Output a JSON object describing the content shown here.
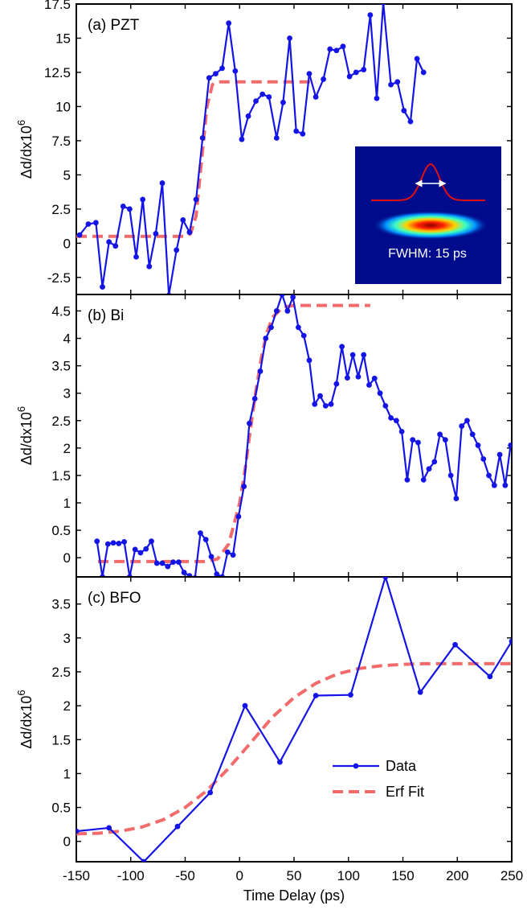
{
  "colors": {
    "data": "#1414e6",
    "fit": "#f26b6b",
    "axis": "#000000",
    "inset_bg": "#000c8c",
    "inset_curve": "#e01010",
    "inset_arrow": "#ffffff"
  },
  "chart_data": {
    "type": "line",
    "x_axis": {
      "label": "Time Delay (ps)",
      "range": [
        -150,
        250
      ],
      "ticks": [
        -150,
        -100,
        -50,
        0,
        50,
        100,
        150,
        200,
        250
      ],
      "tick_labels": [
        "-150",
        "-100",
        "-50",
        "0",
        "50",
        "100",
        "150",
        "200",
        "250"
      ]
    },
    "legend": {
      "placement": "lower-right of panel (c)",
      "entries": [
        {
          "label": "Data",
          "series": "data"
        },
        {
          "label": "Erf Fit",
          "series": "fit"
        }
      ]
    },
    "panels": [
      {
        "id": "a",
        "label": "(a) PZT",
        "ylabel": "Δd/dx10",
        "ylabel_sup": "6",
        "ylim": [
          -3.75,
          17.5
        ],
        "yticks": [
          -2.5,
          0,
          2.5,
          5,
          7.5,
          10,
          12.5,
          15,
          17.5
        ],
        "ytick_labels": [
          "-2.5",
          "0",
          "2.5",
          "5",
          "7.5",
          "10",
          "12.5",
          "15",
          "17.5"
        ],
        "inset": {
          "text": "FWHM: 15 ps"
        },
        "data": [
          [
            -147,
            0.6
          ],
          [
            -139,
            1.4
          ],
          [
            -132,
            1.5
          ],
          [
            -126,
            -3.2
          ],
          [
            -120,
            0.1
          ],
          [
            -114,
            -0.2
          ],
          [
            -107,
            2.7
          ],
          [
            -101,
            2.5
          ],
          [
            -95,
            -1.0
          ],
          [
            -89,
            3.2
          ],
          [
            -83,
            -1.7
          ],
          [
            -77,
            0.7
          ],
          [
            -71,
            4.4
          ],
          [
            -65,
            -3.8
          ],
          [
            -58,
            -0.5
          ],
          [
            -52,
            1.7
          ],
          [
            -46,
            0.8
          ],
          [
            -40,
            3.2
          ],
          [
            -34,
            7.7
          ],
          [
            -28,
            12.1
          ],
          [
            -22,
            12.4
          ],
          [
            -16,
            12.8
          ],
          [
            -10,
            16.1
          ],
          [
            -4,
            12.6
          ],
          [
            2,
            7.6
          ],
          [
            8,
            9.3
          ],
          [
            15,
            10.4
          ],
          [
            21,
            10.9
          ],
          [
            27,
            10.7
          ],
          [
            34,
            7.7
          ],
          [
            40,
            10.3
          ],
          [
            46,
            15.0
          ],
          [
            52,
            8.2
          ],
          [
            58,
            8.0
          ],
          [
            64,
            12.4
          ],
          [
            70,
            10.7
          ],
          [
            77,
            12.0
          ],
          [
            83,
            14.2
          ],
          [
            89,
            14.1
          ],
          [
            95,
            14.4
          ],
          [
            101,
            12.2
          ],
          [
            107,
            12.5
          ],
          [
            114,
            12.7
          ],
          [
            120,
            16.7
          ],
          [
            126,
            10.6
          ],
          [
            132,
            17.6
          ],
          [
            139,
            11.6
          ],
          [
            145,
            11.8
          ],
          [
            151,
            9.7
          ],
          [
            157,
            8.9
          ],
          [
            163,
            13.5
          ],
          [
            169,
            12.5
          ]
        ],
        "fit": [
          [
            -150,
            0.5
          ],
          [
            -70,
            0.5
          ],
          [
            -50,
            0.5
          ],
          [
            -45,
            0.7
          ],
          [
            -40,
            2.0
          ],
          [
            -35,
            6.0
          ],
          [
            -30,
            10.0
          ],
          [
            -25,
            11.6
          ],
          [
            -20,
            11.8
          ],
          [
            -10,
            11.8
          ],
          [
            -5,
            11.8
          ],
          [
            70,
            11.8
          ]
        ]
      },
      {
        "id": "b",
        "label": "(b) Bi",
        "ylabel": "Δd/dx10",
        "ylabel_sup": "6",
        "ylim": [
          -0.35,
          4.8
        ],
        "yticks": [
          0,
          0.5,
          1,
          1.5,
          2,
          2.5,
          3,
          3.5,
          4,
          4.5
        ],
        "ytick_labels": [
          "0",
          "0.5",
          "1",
          "1.5",
          "2",
          "2.5",
          "3",
          "3.5",
          "4",
          "4.5"
        ],
        "data": [
          [
            -131,
            0.3
          ],
          [
            -126,
            -0.35
          ],
          [
            -121,
            0.25
          ],
          [
            -116,
            0.27
          ],
          [
            -111,
            0.26
          ],
          [
            -106,
            0.29
          ],
          [
            -101,
            -0.35
          ],
          [
            -96,
            0.15
          ],
          [
            -91,
            0.09
          ],
          [
            -86,
            0.16
          ],
          [
            -81,
            0.3
          ],
          [
            -76,
            -0.1
          ],
          [
            -71,
            -0.1
          ],
          [
            -66,
            -0.16
          ],
          [
            -61,
            -0.08
          ],
          [
            -56,
            -0.08
          ],
          [
            -51,
            -0.27
          ],
          [
            -46,
            -0.33
          ],
          [
            -41,
            -0.37
          ],
          [
            -36,
            0.45
          ],
          [
            -31,
            0.33
          ],
          [
            -26,
            0.02
          ],
          [
            -21,
            -0.3
          ],
          [
            -16,
            -0.35
          ],
          [
            -11,
            0.1
          ],
          [
            -6,
            0.05
          ],
          [
            -1,
            0.75
          ],
          [
            4,
            1.3
          ],
          [
            9,
            2.45
          ],
          [
            14,
            2.9
          ],
          [
            19,
            3.4
          ],
          [
            24,
            4.0
          ],
          [
            29,
            4.2
          ],
          [
            34,
            4.5
          ],
          [
            39,
            4.8
          ],
          [
            44,
            4.5
          ],
          [
            49,
            4.75
          ],
          [
            54,
            4.2
          ],
          [
            59,
            4.05
          ],
          [
            64,
            3.6
          ],
          [
            69,
            2.8
          ],
          [
            74,
            2.95
          ],
          [
            79,
            2.77
          ],
          [
            84,
            2.8
          ],
          [
            89,
            3.17
          ],
          [
            94,
            3.85
          ],
          [
            99,
            3.28
          ],
          [
            104,
            3.7
          ],
          [
            109,
            3.3
          ],
          [
            114,
            3.7
          ],
          [
            119,
            3.15
          ],
          [
            124,
            3.27
          ],
          [
            129,
            3.0
          ],
          [
            134,
            2.77
          ],
          [
            139,
            2.55
          ],
          [
            144,
            2.5
          ],
          [
            149,
            2.3
          ],
          [
            154,
            1.42
          ],
          [
            159,
            2.15
          ],
          [
            164,
            2.1
          ],
          [
            169,
            1.42
          ],
          [
            174,
            1.62
          ],
          [
            179,
            1.75
          ],
          [
            184,
            2.25
          ],
          [
            189,
            2.15
          ],
          [
            194,
            1.5
          ],
          [
            199,
            1.08
          ],
          [
            204,
            2.4
          ],
          [
            209,
            2.5
          ],
          [
            214,
            2.25
          ],
          [
            219,
            2.05
          ],
          [
            224,
            1.8
          ],
          [
            229,
            1.5
          ],
          [
            234,
            1.32
          ],
          [
            239,
            1.88
          ],
          [
            244,
            1.32
          ],
          [
            249,
            2.05
          ]
        ],
        "fit": [
          [
            -130,
            -0.07
          ],
          [
            -30,
            -0.07
          ],
          [
            -20,
            -0.02
          ],
          [
            -10,
            0.25
          ],
          [
            0,
            1.0
          ],
          [
            5,
            1.6
          ],
          [
            10,
            2.35
          ],
          [
            15,
            3.05
          ],
          [
            20,
            3.65
          ],
          [
            25,
            4.1
          ],
          [
            30,
            4.38
          ],
          [
            40,
            4.57
          ],
          [
            50,
            4.6
          ],
          [
            60,
            4.6
          ],
          [
            120,
            4.6
          ]
        ]
      },
      {
        "id": "c",
        "label": "(c) BFO",
        "ylabel": "Δd/dx10",
        "ylabel_sup": "6",
        "ylim": [
          -0.3,
          3.9
        ],
        "yticks": [
          0,
          0.5,
          1,
          1.5,
          2,
          2.5,
          3,
          3.5
        ],
        "ytick_labels": [
          "0",
          "0.5",
          "1",
          "1.5",
          "2",
          "2.5",
          "3",
          "3.5"
        ],
        "data": [
          [
            -150,
            0.15
          ],
          [
            -120,
            0.2
          ],
          [
            -88,
            -0.3
          ],
          [
            -57,
            0.22
          ],
          [
            -27,
            0.72
          ],
          [
            5,
            2.0
          ],
          [
            37,
            1.17
          ],
          [
            70,
            2.15
          ],
          [
            102,
            2.16
          ],
          [
            134,
            3.9
          ],
          [
            166,
            2.2
          ],
          [
            198,
            2.9
          ],
          [
            230,
            2.43
          ],
          [
            250,
            2.95
          ]
        ],
        "fit": [
          [
            -150,
            0.11
          ],
          [
            -130,
            0.12
          ],
          [
            -110,
            0.15
          ],
          [
            -90,
            0.21
          ],
          [
            -70,
            0.32
          ],
          [
            -50,
            0.5
          ],
          [
            -30,
            0.75
          ],
          [
            -10,
            1.08
          ],
          [
            10,
            1.45
          ],
          [
            30,
            1.83
          ],
          [
            50,
            2.12
          ],
          [
            70,
            2.33
          ],
          [
            90,
            2.47
          ],
          [
            110,
            2.55
          ],
          [
            130,
            2.59
          ],
          [
            150,
            2.61
          ],
          [
            170,
            2.62
          ],
          [
            200,
            2.62
          ],
          [
            250,
            2.62
          ]
        ]
      }
    ]
  }
}
